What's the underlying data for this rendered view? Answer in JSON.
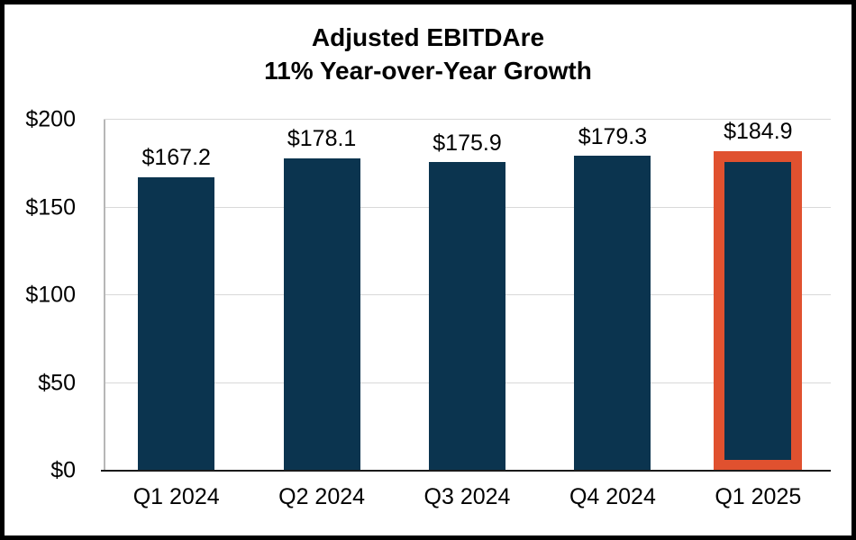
{
  "title": {
    "line1": "Adjusted EBITDAre",
    "line2": "11% Year-over-Year Growth"
  },
  "chart_data": {
    "type": "bar",
    "title": "Adjusted EBITDAre — 11% Year-over-Year Growth",
    "categories": [
      "Q1 2024",
      "Q2 2024",
      "Q3 2024",
      "Q4 2024",
      "Q1 2025"
    ],
    "values": [
      167.2,
      178.1,
      175.9,
      179.3,
      184.9
    ],
    "data_labels": [
      "$167.2",
      "$178.1",
      "$175.9",
      "$179.3",
      "$184.9"
    ],
    "xlabel": "",
    "ylabel": "",
    "ylim": [
      0,
      200
    ],
    "yticks": [
      {
        "value": 0,
        "label": "$0"
      },
      {
        "value": 50,
        "label": "$50"
      },
      {
        "value": 100,
        "label": "$100"
      },
      {
        "value": 150,
        "label": "$150"
      },
      {
        "value": 200,
        "label": "$200"
      }
    ],
    "grid": "horizontal",
    "legend": "none",
    "highlight_index": 4,
    "colors": {
      "bar": "#0b344f",
      "highlight_border": "#e0512f",
      "gridline": "#d9d9d9",
      "y_axis_line": "#b7b7b7",
      "x_axis_line": "#1a1a1a",
      "text": "#000000",
      "background": "#ffffff"
    }
  }
}
